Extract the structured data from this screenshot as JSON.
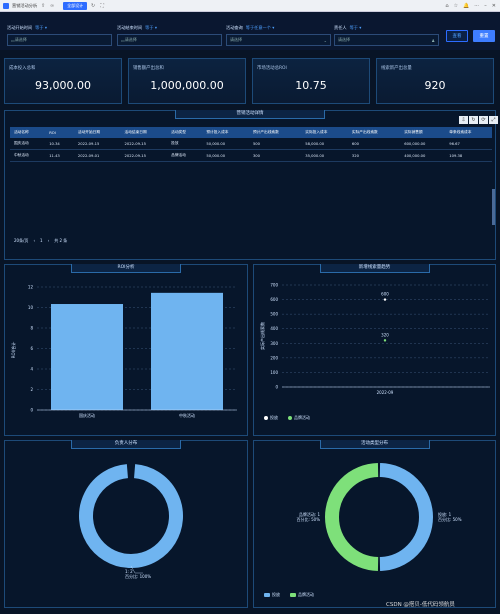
{
  "topbar": {
    "title": "营销活动分析",
    "design_label": "全部设计"
  },
  "filters": [
    {
      "label": "活动开始时间",
      "op": "等于",
      "placeholder": "请选择",
      "x": 7,
      "w": 105,
      "icon": "calendar-icon"
    },
    {
      "label": "活动结束时间",
      "op": "等于",
      "placeholder": "请选择",
      "x": 117,
      "w": 105,
      "icon": "calendar-icon"
    },
    {
      "label": "活动查询",
      "op": "等于任意一个",
      "placeholder": "请选择",
      "x": 226,
      "w": 105,
      "icon": "chevron-down-icon"
    },
    {
      "label": "责任人",
      "op": "等于",
      "placeholder": "请选择",
      "x": 334,
      "w": 105,
      "icon": "user-icon"
    }
  ],
  "buttons": {
    "query": "查看",
    "reset": "重置"
  },
  "kpis": [
    {
      "title": "成本投入总和",
      "value": "93,000.00"
    },
    {
      "title": "销售额产出总和",
      "value": "1,000,000.00"
    },
    {
      "title": "市场活动总ROI",
      "value": "10.75"
    },
    {
      "title": "线索新产出总量",
      "value": "920"
    }
  ],
  "table": {
    "title": "营销活动详情",
    "headers": [
      "活动名称",
      "ROI",
      "活动开始日期",
      "活动结束日期",
      "活动类型",
      "预计投入成本",
      "预计产出线索数",
      "实际投入成本",
      "实际产出线索数",
      "实际销售额",
      "单条线索成本"
    ],
    "rows": [
      [
        "国庆活动",
        "10.34",
        "2022-09-15",
        "2022-09-15",
        "投放",
        "50,000.00",
        "500",
        "58,000.00",
        "600",
        "600,000.00",
        "96.67"
      ],
      [
        "中秋活动",
        "11.43",
        "2022-09-01",
        "2022-09-15",
        "品牌活动",
        "50,000.00",
        "300",
        "35,000.00",
        "320",
        "400,000.00",
        "109.38"
      ]
    ],
    "pager": {
      "size": "20条/页",
      "page": "1",
      "total": "共 2 条"
    }
  },
  "roi_chart": {
    "title": "ROI分析",
    "ylabel": "ROI/合计",
    "chart_data": {
      "type": "bar",
      "categories": [
        "国庆活动",
        "中秋活动"
      ],
      "values": [
        10.34,
        11.43
      ],
      "ylim": [
        0,
        12
      ],
      "ticks": [
        0,
        2,
        4,
        6,
        8,
        10,
        12
      ],
      "color": "#6fb4f0"
    }
  },
  "lead_chart": {
    "title": "新增线索量趋势",
    "ylabel": "实际产出线索数",
    "chart_data": {
      "type": "scatter",
      "x": [
        "2022-09",
        "2022-09"
      ],
      "values": [
        600,
        320
      ],
      "ylim": [
        0,
        700
      ],
      "ticks": [
        0,
        100,
        200,
        300,
        400,
        500,
        600,
        700
      ],
      "xlabel": "2022-09",
      "series": [
        "投放",
        "品牌活动"
      ],
      "colors": [
        "#ffffff",
        "#7ee07a"
      ]
    }
  },
  "owner_chart": {
    "title": "负责人分布",
    "chart_data": {
      "type": "pie",
      "labels": [
        "1"
      ],
      "values": [
        2
      ],
      "label_text": "1: 2",
      "pct_text": "百分比: 100%",
      "color": "#6fb4f0"
    }
  },
  "type_chart": {
    "title": "活动类型分布",
    "chart_data": {
      "type": "pie",
      "labels": [
        "投放",
        "品牌活动"
      ],
      "values": [
        1,
        1
      ],
      "label_left": "品牌活动: 1",
      "pct_left": "百分比: 50%",
      "label_right": "投放: 1",
      "pct_right": "百分比: 50%",
      "colors": [
        "#6fb4f0",
        "#7ee07a"
      ]
    }
  },
  "watermark": "CSDN @搭贝-低代码领航员"
}
